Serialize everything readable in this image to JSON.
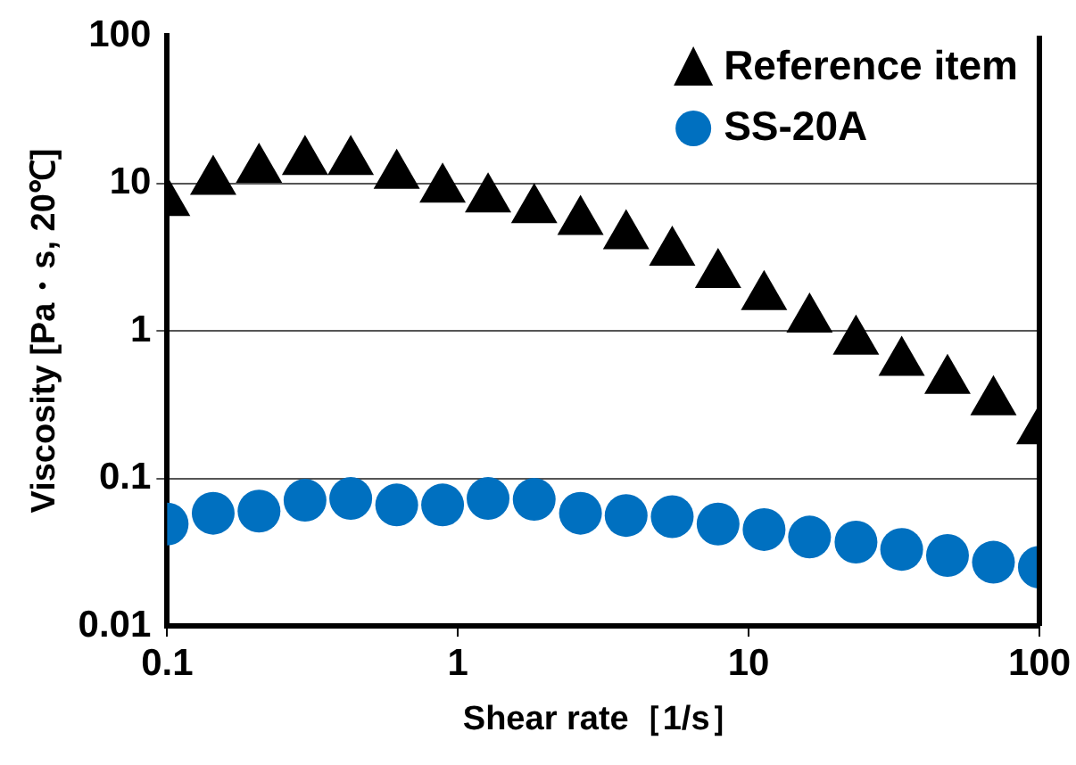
{
  "chart_data": {
    "type": "scatter",
    "xlabel": "Shear rate［1/s］",
    "ylabel": "Viscosity [Pa・s, 20℃]",
    "log": "xy",
    "xlim": [
      0.1,
      100
    ],
    "xticks": [
      0.1,
      1,
      10,
      100
    ],
    "ylim": [
      0.01,
      100
    ],
    "yticks": [
      0.01,
      0.1,
      1,
      10,
      100
    ],
    "grid": "y",
    "legend": "top right",
    "x": [
      0.1,
      0.144,
      0.207,
      0.298,
      0.428,
      0.616,
      0.886,
      1.27,
      1.83,
      2.64,
      3.79,
      5.46,
      7.85,
      11.3,
      16.2,
      23.4,
      33.6,
      48.3,
      69.5,
      100
    ],
    "series": [
      {
        "name": "Reference item",
        "color": "#000000",
        "marker": "triangle",
        "values": [
          7.4,
          10.3,
          12.4,
          14.0,
          14.0,
          11.3,
          9.1,
          7.8,
          6.6,
          5.5,
          4.4,
          3.4,
          2.4,
          1.7,
          1.2,
          0.85,
          0.61,
          0.46,
          0.33,
          0.21
        ]
      },
      {
        "name": "SS-20A",
        "color": "#0070c0",
        "marker": "circle",
        "values": [
          0.049,
          0.058,
          0.06,
          0.071,
          0.073,
          0.066,
          0.066,
          0.073,
          0.072,
          0.058,
          0.056,
          0.055,
          0.049,
          0.045,
          0.04,
          0.037,
          0.033,
          0.03,
          0.027,
          0.025
        ]
      }
    ]
  }
}
